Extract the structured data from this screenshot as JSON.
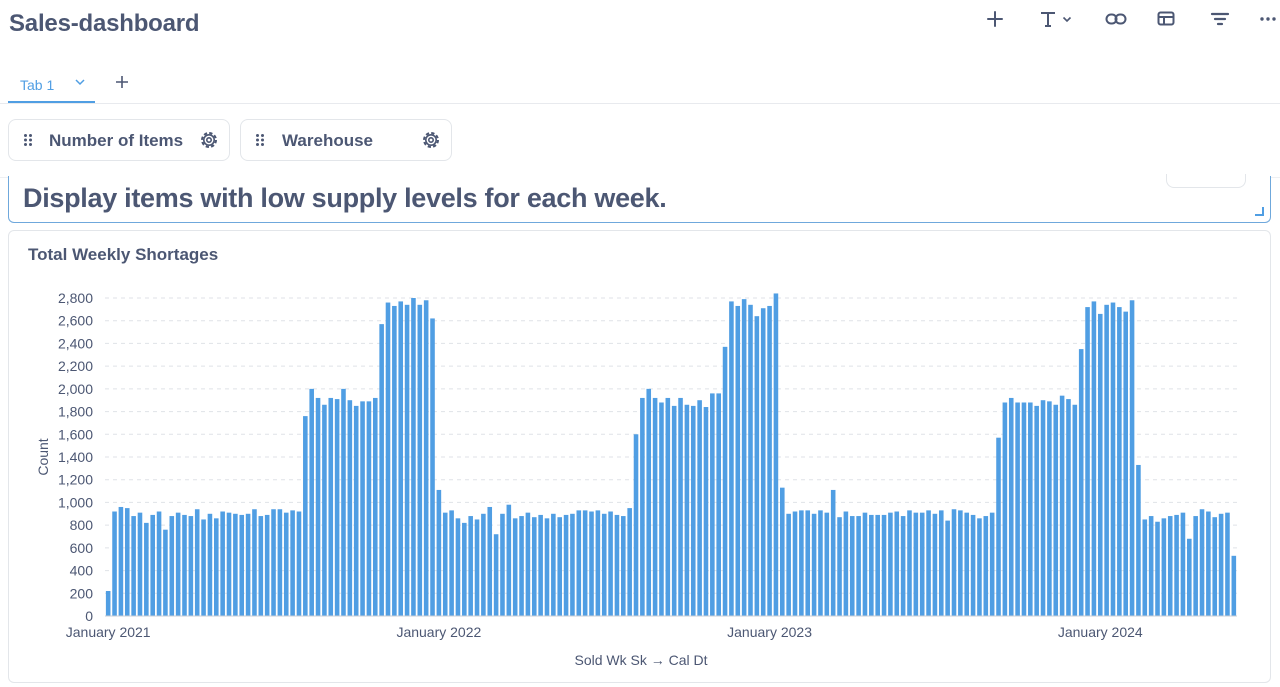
{
  "dashboard": {
    "title": "Sales-dashboard"
  },
  "toolbar": {
    "icons": [
      "plus-icon",
      "text-icon",
      "link-icon",
      "section-icon",
      "filter-icon",
      "more-icon"
    ]
  },
  "tabs": [
    {
      "label": "Tab 1"
    }
  ],
  "filters": [
    {
      "label": "Number of Items"
    },
    {
      "label": "Warehouse"
    }
  ],
  "text_card": {
    "text": "Display items with low supply levels for each week."
  },
  "colors": {
    "accent": "#509ee3",
    "bar": "#509ee3",
    "text": "#4c5773"
  },
  "chart": {
    "title": "Total Weekly Shortages",
    "x_tick_labels": [
      "January 2021",
      "January 2022",
      "January 2023",
      "January 2024"
    ]
  },
  "chart_data": {
    "type": "bar",
    "title": "Total Weekly Shortages",
    "xlabel": "Sold Wk Sk → Cal Dt",
    "ylabel": "Count",
    "ylim": [
      0,
      2800
    ],
    "y_ticks": [
      0,
      200,
      400,
      600,
      800,
      "1,000",
      "1,200",
      "1,400",
      "1,600",
      "1,800",
      "2,000",
      "2,200",
      "2,400",
      "2,600",
      "2,800"
    ],
    "x_ticks": [
      "January 2021",
      "January 2022",
      "January 2023",
      "January 2024"
    ],
    "grid": "horizontal dashed",
    "series": [
      {
        "values": [
          220,
          920,
          960,
          950,
          880,
          910,
          820,
          890,
          920,
          760,
          880,
          910,
          890,
          880,
          940,
          850,
          900,
          860,
          920,
          910,
          900,
          890,
          900,
          940,
          880,
          890,
          940,
          940,
          910,
          930,
          920,
          1760,
          2000,
          1920,
          1860,
          1920,
          1910,
          2000,
          1900,
          1850,
          1890,
          1890,
          1920,
          2570,
          2760,
          2730,
          2770,
          2740,
          2800,
          2740,
          2780,
          2620,
          1110,
          910,
          930,
          860,
          820,
          880,
          850,
          900,
          960,
          720,
          900,
          980,
          860,
          880,
          910,
          870,
          890,
          860,
          900,
          870,
          890,
          900,
          930,
          930,
          920,
          930,
          900,
          920,
          890,
          880,
          950,
          1600,
          1920,
          2000,
          1920,
          1880,
          1920,
          1850,
          1920,
          1860,
          1850,
          1900,
          1840,
          1960,
          1960,
          2370,
          2770,
          2730,
          2790,
          2740,
          2640,
          2710,
          2730,
          2840,
          1130,
          900,
          920,
          930,
          930,
          900,
          930,
          910,
          1110,
          870,
          920,
          880,
          880,
          910,
          890,
          890,
          890,
          910,
          920,
          880,
          930,
          910,
          910,
          930,
          900,
          930,
          840,
          940,
          930,
          910,
          890,
          860,
          880,
          910,
          1570,
          1880,
          1920,
          1880,
          1880,
          1880,
          1850,
          1900,
          1890,
          1860,
          1940,
          1910,
          1860,
          2350,
          2720,
          2770,
          2660,
          2740,
          2760,
          2720,
          2680,
          2780,
          1330,
          850,
          880,
          830,
          860,
          880,
          890,
          910,
          680,
          880,
          940,
          920,
          870,
          900,
          910,
          530
        ]
      }
    ]
  }
}
